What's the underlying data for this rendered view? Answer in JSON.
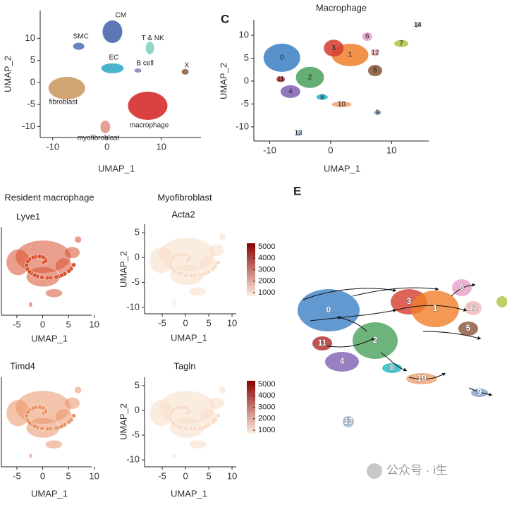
{
  "chart_data": [
    {
      "type": "scatter",
      "xlabel": "UMAP_1",
      "ylabel": "UMAP_2",
      "xlim": [
        -12.3,
        17.3
      ],
      "ylim": [
        -12.5,
        16.3
      ],
      "xticks": [
        -10,
        0,
        10
      ],
      "yticks": [
        -10,
        -5,
        0,
        5,
        10
      ],
      "clusters": [
        {
          "name": "CM",
          "color": "#3f5fa8",
          "x": 1.0,
          "y": 11.5
        },
        {
          "name": "SMC",
          "color": "#4a6fb5",
          "x": -5.2,
          "y": 8.2
        },
        {
          "name": "T & NK",
          "color": "#7fcfc0",
          "x": 7.9,
          "y": 7.8
        },
        {
          "name": "EC",
          "color": "#2aa7c4",
          "x": 1.0,
          "y": 3.2
        },
        {
          "name": "B cell",
          "color": "#8b7bb5",
          "x": 5.7,
          "y": 2.7
        },
        {
          "name": "X",
          "color": "#8a5a3a",
          "x": 14.4,
          "y": 2.4
        },
        {
          "name": "fibroblast",
          "color": "#c8955a",
          "x": -7.4,
          "y": -1.3
        },
        {
          "name": "macrophage",
          "color": "#d42020",
          "x": 7.5,
          "y": -5.3
        },
        {
          "name": "myofibroblast",
          "color": "#e09080",
          "x": -0.3,
          "y": -10.1
        }
      ]
    },
    {
      "type": "scatter",
      "panel_label": "C",
      "title": "Macrophage",
      "xlabel": "UMAP_1",
      "ylabel": "UMAP_2",
      "xlim": [
        -12.6,
        16.1
      ],
      "ylim": [
        -13.1,
        13.4
      ],
      "xticks": [
        -10,
        0,
        10
      ],
      "yticks": [
        -10,
        -5,
        0,
        5,
        10
      ],
      "clusters": [
        {
          "name": "0",
          "color": "#3b7fc4",
          "x": -8.0,
          "y": 5.1
        },
        {
          "name": "1",
          "color": "#f07f2a",
          "x": 3.2,
          "y": 5.7
        },
        {
          "name": "2",
          "color": "#4aa05a",
          "x": -3.4,
          "y": 0.8
        },
        {
          "name": "3",
          "color": "#d23c2e",
          "x": 0.5,
          "y": 7.2
        },
        {
          "name": "4",
          "color": "#7f5fb0",
          "x": -6.6,
          "y": -2.3
        },
        {
          "name": "5",
          "color": "#8a5236",
          "x": 7.3,
          "y": 2.3
        },
        {
          "name": "6",
          "color": "#e59ec8",
          "x": 6.0,
          "y": 9.7
        },
        {
          "name": "7",
          "color": "#b0c040",
          "x": 11.6,
          "y": 8.2
        },
        {
          "name": "8",
          "color": "#22b5c5",
          "x": -1.4,
          "y": -3.5
        },
        {
          "name": "9",
          "color": "#7f9fd0",
          "x": 7.7,
          "y": -6.9
        },
        {
          "name": "10",
          "color": "#f0a070",
          "x": 1.8,
          "y": -5.1
        },
        {
          "name": "11",
          "color": "#b02828",
          "x": -8.2,
          "y": 0.4
        },
        {
          "name": "12",
          "color": "#f2b8b8",
          "x": 7.3,
          "y": 6.2
        },
        {
          "name": "13",
          "color": "#9fb4d8",
          "x": -5.3,
          "y": -11.4
        },
        {
          "name": "14",
          "color": "#aaaaaa",
          "x": 14.3,
          "y": 12.3
        }
      ]
    },
    {
      "type": "feature",
      "group_title": "Resident macrophage",
      "title": "Lyve1",
      "xlabel": "UMAP_1",
      "xlim": [
        -8,
        9.5
      ],
      "xticks": [
        -5,
        0,
        5,
        10
      ],
      "point_color": "#d9502f"
    },
    {
      "type": "feature",
      "title": "Timd4",
      "xlabel": "UMAP_1",
      "xlim": [
        -8,
        9.5
      ],
      "xticks": [
        -5,
        0,
        5,
        10
      ],
      "point_color": "#e99466"
    },
    {
      "type": "feature",
      "group_title": "Myofibroblast",
      "title": "Acta2",
      "xlabel": "UMAP_1",
      "ylabel": "UMAP_2",
      "xlim": [
        -8.8,
        10.9
      ],
      "ylim": [
        -11.3,
        6.7
      ],
      "xticks": [
        -5,
        0,
        5,
        10
      ],
      "yticks": [
        -10,
        -5,
        0,
        5
      ],
      "point_color": "#f8dcc6",
      "colorbar": {
        "lim": [
          700,
          5300
        ],
        "ticks": [
          1000,
          2000,
          3000,
          4000,
          5000
        ],
        "colors": [
          "#fdf0e0",
          "#8b0000"
        ]
      }
    },
    {
      "type": "feature",
      "title": "Tagln",
      "xlabel": "UMAP_1",
      "ylabel": "UMAP_2",
      "xlim": [
        -8.8,
        10.9
      ],
      "ylim": [
        -11.4,
        6.7
      ],
      "xticks": [
        -5,
        0,
        5,
        10
      ],
      "yticks": [
        -10,
        -5,
        0,
        5
      ],
      "point_color": "#f8dcc6",
      "colorbar": {
        "lim": [
          700,
          5300
        ],
        "ticks": [
          1000,
          2000,
          3000,
          4000,
          5000
        ],
        "colors": [
          "#fdf0e0",
          "#8b0000"
        ]
      }
    }
  ],
  "panel_e": {
    "panel_label": "E",
    "clusters": [
      "0",
      "3",
      "1",
      "6",
      "12",
      "5",
      "11",
      "2",
      "4",
      "8",
      "10",
      "9",
      "13"
    ]
  },
  "watermark": "公众号 · i生"
}
